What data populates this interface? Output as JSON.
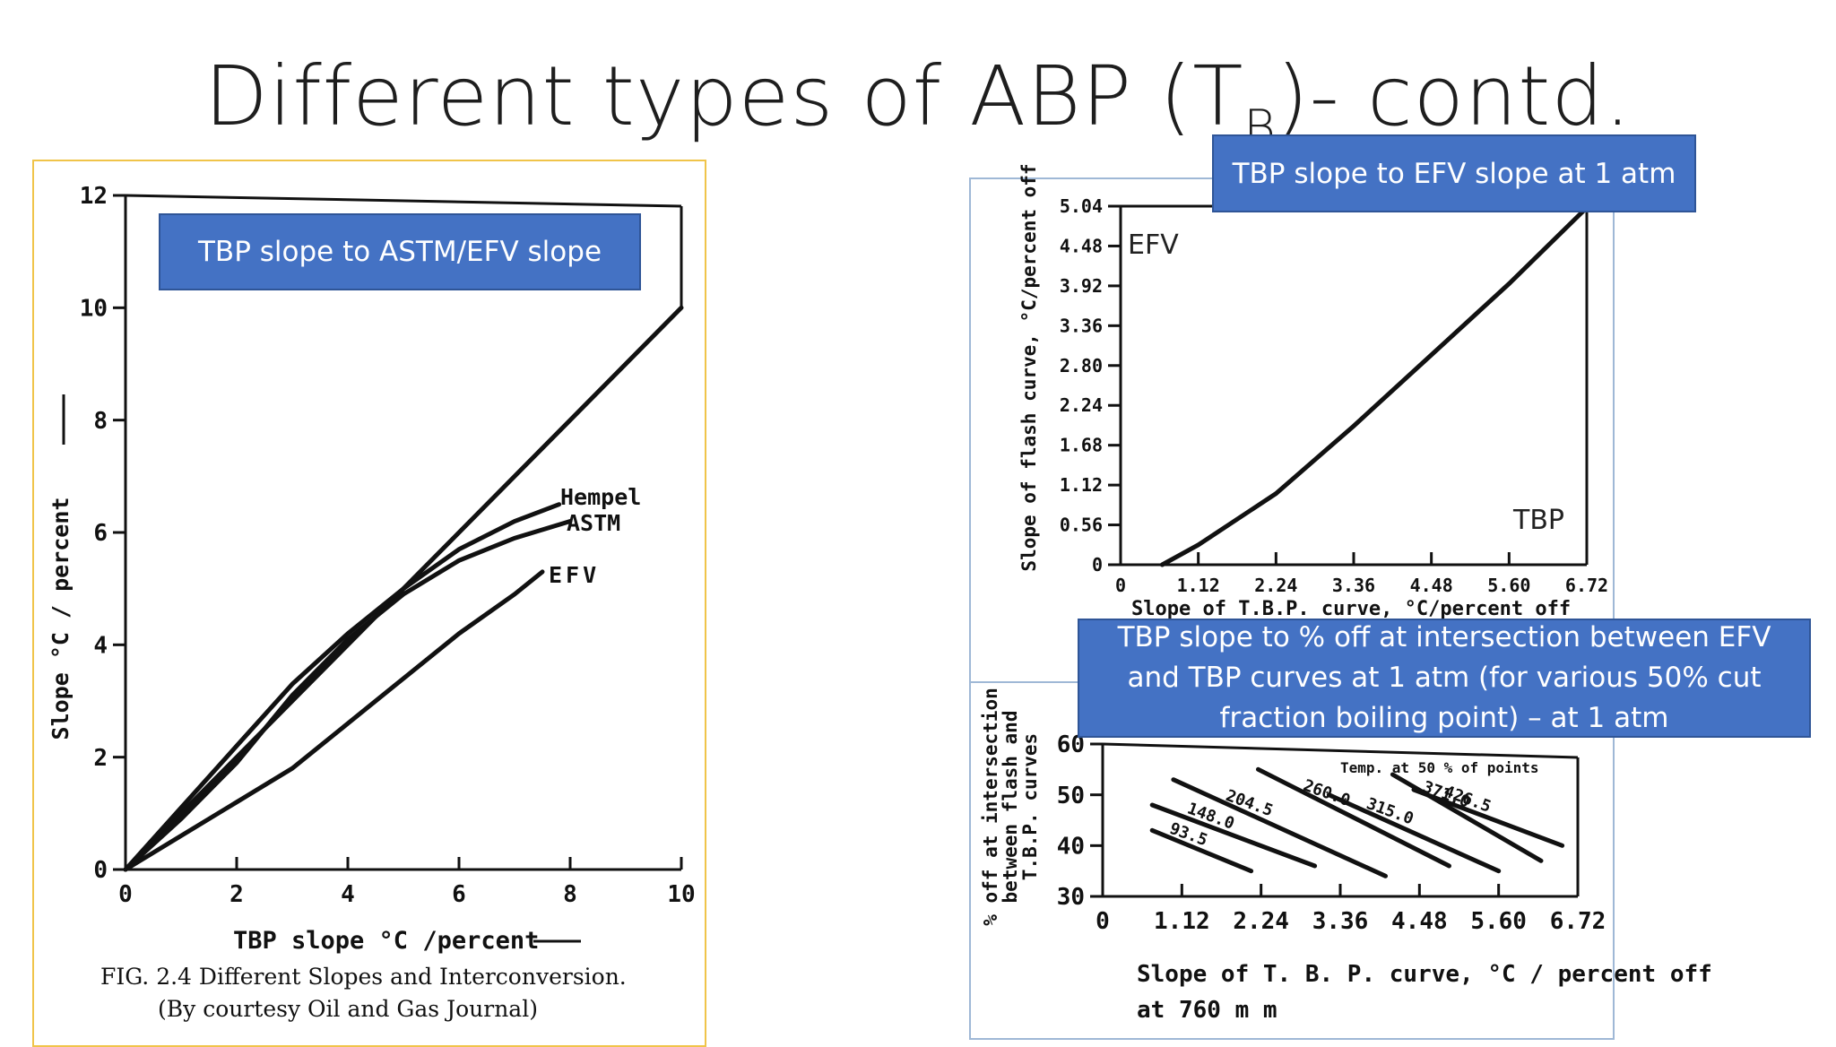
{
  "slide": {
    "title_main": "Different types of ABP (T",
    "title_sub": "B",
    "title_end": ")- contd."
  },
  "callouts": {
    "left": "TBP slope to ASTM/EFV slope",
    "right_top": "TBP slope to EFV slope at 1 atm",
    "right_bottom": "TBP slope to % off at intersection between EFV and TBP curves at 1 atm (for various 50% cut fraction boiling point) – at 1 atm"
  },
  "colors": {
    "callout_bg": "#4472c4",
    "left_frame": "#f0c44a",
    "right_frame": "#9fb8d6"
  },
  "chart_data": [
    {
      "type": "line",
      "title": "",
      "xlabel": "TBP slope °C /percent",
      "ylabel": "Slope °C / percent",
      "xlim": [
        0,
        10
      ],
      "ylim": [
        0,
        12
      ],
      "x_ticks": [
        "0",
        "2",
        "4",
        "6",
        "8",
        "10"
      ],
      "y_ticks": [
        "0",
        "2",
        "4",
        "6",
        "8",
        "10",
        "12"
      ],
      "caption_line1": "FIG. 2.4   Different Slopes and Interconversion.",
      "caption_line2": "(By courtesy Oil and Gas Journal)",
      "series": [
        {
          "name": "",
          "x": [
            0,
            10
          ],
          "y": [
            0,
            10
          ]
        },
        {
          "name": "Hempel",
          "x": [
            0,
            1,
            2,
            3,
            4,
            5,
            6,
            7,
            7.8
          ],
          "y": [
            0,
            1.1,
            2.2,
            3.3,
            4.2,
            5.0,
            5.7,
            6.2,
            6.5
          ]
        },
        {
          "name": "ASTM",
          "x": [
            0,
            1,
            2,
            3,
            4,
            5,
            6,
            7,
            8
          ],
          "y": [
            0,
            0.9,
            1.9,
            3.1,
            4.1,
            4.9,
            5.5,
            5.9,
            6.2
          ]
        },
        {
          "name": "EFV",
          "x": [
            0,
            1,
            2,
            3,
            4,
            5,
            6,
            7,
            7.5
          ],
          "y": [
            0,
            0.6,
            1.2,
            1.8,
            2.6,
            3.4,
            4.2,
            4.9,
            5.3
          ]
        }
      ]
    },
    {
      "type": "line",
      "title": "",
      "xlabel": "Slope of T.B.P. curve, °C/percent off",
      "ylabel": "Slope of flash curve,  °C/percent off",
      "xlim": [
        0,
        6.72
      ],
      "ylim": [
        0,
        5.04
      ],
      "x_ticks": [
        "0",
        "1.12",
        "2.24",
        "3.36",
        "4.48",
        "5.60",
        "6.72"
      ],
      "y_ticks": [
        "0",
        "0.56",
        "1.12",
        "1.68",
        "2.24",
        "2.80",
        "3.36",
        "3.92",
        "4.48",
        "5.04"
      ],
      "annotation_top": "EFV",
      "annotation_bottom": "TBP",
      "series": [
        {
          "name": "",
          "x": [
            0.6,
            1.12,
            2.24,
            3.36,
            4.48,
            5.6,
            6.72
          ],
          "y": [
            0,
            0.28,
            1.0,
            1.95,
            2.95,
            3.95,
            5.02
          ]
        }
      ]
    },
    {
      "type": "line",
      "title": "",
      "xlabel": "Slope of T. B. P. curve, °C / percent off",
      "xlabel_line2": "at  760 m m",
      "ylabel_line1": "% off at intersection",
      "ylabel_line2": "between flash and",
      "ylabel_line3": "T.B.P. curves",
      "legend_title": "Temp. at 50 % of points",
      "xlim": [
        0,
        6.72
      ],
      "ylim": [
        30,
        60
      ],
      "x_ticks": [
        "0",
        "1.12",
        "2.24",
        "3.36",
        "4.48",
        "5.60",
        "6.72"
      ],
      "y_ticks": [
        "30",
        "40",
        "50",
        "60"
      ],
      "series": [
        {
          "name": "93.5",
          "x": [
            0.7,
            2.1
          ],
          "y": [
            43,
            35
          ]
        },
        {
          "name": "148.0",
          "x": [
            0.7,
            3.0
          ],
          "y": [
            48,
            36
          ]
        },
        {
          "name": "204.5",
          "x": [
            1.0,
            4.0
          ],
          "y": [
            53,
            34
          ]
        },
        {
          "name": "260.0",
          "x": [
            2.2,
            4.9
          ],
          "y": [
            55,
            36
          ]
        },
        {
          "name": "315.0",
          "x": [
            3.2,
            5.6
          ],
          "y": [
            50,
            35
          ]
        },
        {
          "name": "371.0",
          "x": [
            4.1,
            6.2
          ],
          "y": [
            54,
            37
          ]
        },
        {
          "name": "426.5",
          "x": [
            4.4,
            6.5
          ],
          "y": [
            51,
            40
          ]
        }
      ]
    }
  ]
}
